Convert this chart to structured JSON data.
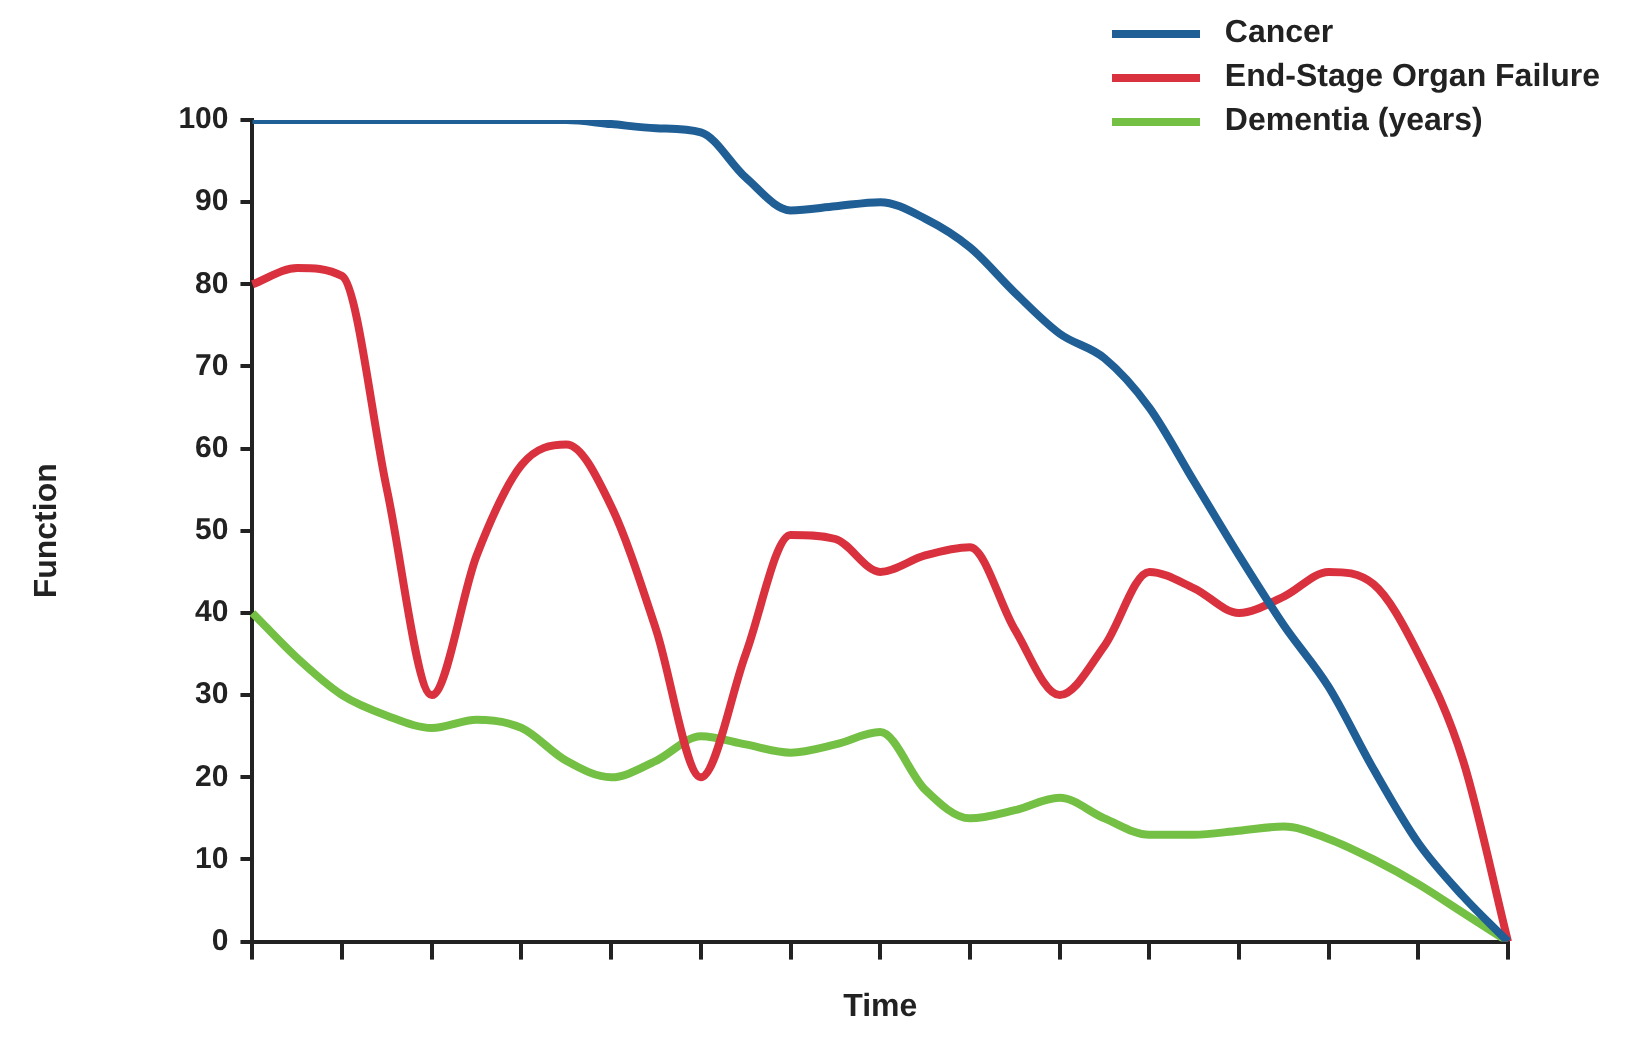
{
  "chart_data": {
    "type": "line",
    "xlabel": "Time",
    "ylabel": "Function",
    "categories": [
      null,
      null,
      null,
      null,
      null,
      null,
      null,
      null,
      null,
      null,
      null,
      null,
      null,
      null,
      null,
      null,
      null,
      null,
      null,
      null,
      null,
      null,
      null,
      null,
      null,
      null,
      null,
      null,
      null
    ],
    "ylim": [
      0,
      100
    ],
    "yticks": [
      0,
      10,
      20,
      30,
      40,
      50,
      60,
      70,
      80,
      90,
      100
    ],
    "tick_labels": "y",
    "grid": false,
    "legend": "top right",
    "series": [
      {
        "name": "Cancer",
        "color": "#1f5f96",
        "values": [
          100,
          100,
          100,
          100,
          100,
          100,
          100,
          100,
          99.5,
          99,
          98.5,
          93,
          89,
          89.5,
          90,
          88,
          84.5,
          79,
          74,
          71,
          65,
          56,
          47,
          38.5,
          31,
          21,
          12,
          5.5,
          0
        ]
      },
      {
        "name": "End-Stage Organ Failure",
        "color": "#d9323e",
        "values": [
          80,
          82,
          81,
          55,
          30,
          47,
          58,
          60.5,
          53,
          38,
          20,
          35,
          49.5,
          49,
          45,
          47,
          48,
          38,
          30,
          36,
          45,
          43,
          40,
          42,
          45,
          43.5,
          35,
          22,
          0
        ]
      },
      {
        "name": "Dementia (years)",
        "color": "#74c044",
        "values": [
          40,
          34.5,
          30,
          27.5,
          26,
          27,
          26,
          22,
          20,
          22,
          25,
          24,
          23,
          24,
          25.5,
          18.5,
          15,
          16,
          17.5,
          15,
          13,
          13,
          13.5,
          14,
          12.5,
          10,
          7,
          3.5,
          0
        ]
      }
    ]
  }
}
